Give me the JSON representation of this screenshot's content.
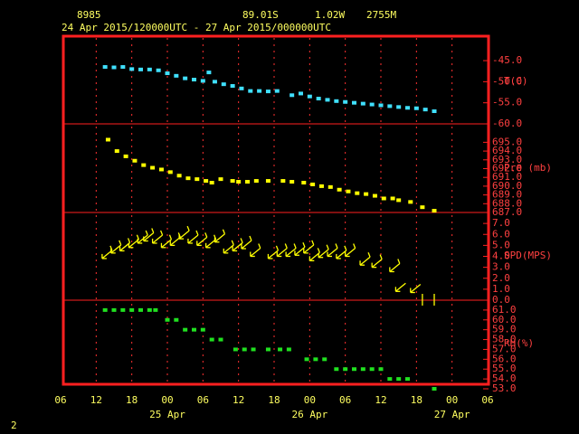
{
  "header": {
    "station": "8985",
    "lat": "89.01S",
    "lon": "1.02W",
    "elev": "2755M",
    "period": "24 Apr 2015/120000UTC - 27 Apr 2015/000000UTC",
    "page": "2"
  },
  "chart_data": [
    {
      "type": "scatter",
      "label": "T(C)",
      "color": "#40e0ff",
      "x": [
        7.5,
        9,
        10.5,
        12,
        13.5,
        15,
        16.5,
        18,
        19.5,
        21,
        22.5,
        24,
        25,
        26,
        27.5,
        29,
        30.5,
        32,
        33.5,
        35,
        36.5,
        39,
        40.5,
        42,
        43.5,
        45,
        46.5,
        48,
        49.5,
        51,
        52.5,
        54,
        55.5,
        57,
        58.5,
        60,
        61.5,
        63
      ],
      "values": [
        -46.5,
        -46.6,
        -46.5,
        -47.0,
        -47.1,
        -47.1,
        -47.3,
        -48.0,
        -48.6,
        -49.2,
        -49.5,
        -49.8,
        -47.8,
        -50.0,
        -50.6,
        -51.0,
        -51.6,
        -52.2,
        -52.2,
        -52.3,
        -52.2,
        -53.2,
        -52.8,
        -53.5,
        -54.0,
        -54.3,
        -54.6,
        -54.8,
        -55.0,
        -55.2,
        -55.4,
        -55.6,
        -55.8,
        -56.0,
        -56.2,
        -56.3,
        -56.6,
        -57.0
      ],
      "ylim": [
        -60,
        -39.2
      ],
      "yticks": [
        {
          "value": -45,
          "label": "-45.0"
        },
        {
          "value": -50,
          "label": "-50.0"
        },
        {
          "value": -55,
          "label": "-55.0"
        },
        {
          "value": -60,
          "label": "-60.0"
        }
      ]
    },
    {
      "type": "scatter",
      "label": "Pre (mb)",
      "color": "#ffff00",
      "x": [
        8,
        9.5,
        11,
        12.5,
        14,
        15.5,
        17,
        18.5,
        20,
        21.5,
        23,
        24.5,
        25.5,
        27,
        29,
        30,
        31.5,
        33,
        35,
        37.5,
        39,
        41,
        42.5,
        44,
        45.5,
        47,
        48.5,
        50,
        51.5,
        53,
        54.5,
        56,
        57,
        59,
        61,
        63
      ],
      "values": [
        695.3,
        694.0,
        693.4,
        692.9,
        692.4,
        692.1,
        691.9,
        691.6,
        691.2,
        690.9,
        690.8,
        690.6,
        690.4,
        690.8,
        690.6,
        690.5,
        690.5,
        690.6,
        690.6,
        690.6,
        690.5,
        690.4,
        690.2,
        690.0,
        689.9,
        689.6,
        689.4,
        689.2,
        689.1,
        688.9,
        688.6,
        688.6,
        688.4,
        688.2,
        687.6,
        687.2
      ],
      "ylim": [
        687,
        697.1
      ],
      "yticks": [
        {
          "value": 695,
          "label": "695.0"
        },
        {
          "value": 694,
          "label": "694.0"
        },
        {
          "value": 693,
          "label": "693.0"
        },
        {
          "value": 692,
          "label": "692.0"
        },
        {
          "value": 691,
          "label": "691.0"
        },
        {
          "value": 690,
          "label": "690.0"
        },
        {
          "value": 689,
          "label": "689.0"
        },
        {
          "value": 688,
          "label": "688.0"
        },
        {
          "value": 687,
          "label": "687.0"
        }
      ]
    },
    {
      "type": "wind",
      "label": "SPD(MPS)",
      "color": "#ffff00",
      "x": [
        7,
        8.5,
        10,
        11.5,
        13,
        14,
        15.5,
        17,
        18.5,
        20,
        21.5,
        23,
        24.5,
        26,
        27.5,
        29,
        30.5,
        32,
        35,
        36.5,
        38,
        39.5,
        41,
        42,
        43.5,
        45,
        46.5,
        48,
        50.5,
        52.5,
        55.5,
        56.5,
        59,
        61,
        63
      ],
      "values": [
        3.8,
        4.3,
        4.5,
        4.8,
        5.2,
        5.4,
        5.2,
        4.8,
        5.0,
        5.6,
        5.2,
        5.0,
        4.8,
        5.3,
        4.3,
        4.5,
        4.7,
        4.0,
        3.8,
        4.0,
        4.0,
        4.1,
        4.3,
        3.6,
        3.9,
        4.0,
        3.8,
        4.0,
        3.2,
        3.0,
        2.6,
        0.8,
        0.7,
        0.0,
        0.0
      ],
      "ylim": [
        0,
        8
      ],
      "yticks": [
        {
          "value": 7,
          "label": "7.0"
        },
        {
          "value": 6,
          "label": "6.0"
        },
        {
          "value": 5,
          "label": "5.0"
        },
        {
          "value": 4,
          "label": "4.0"
        },
        {
          "value": 3,
          "label": "3.0"
        },
        {
          "value": 2,
          "label": "2.0"
        },
        {
          "value": 1,
          "label": "1.0"
        },
        {
          "value": 0,
          "label": "0.0"
        }
      ]
    },
    {
      "type": "scatter",
      "label": "RH(%)",
      "color": "#20e020",
      "x": [
        7.5,
        9,
        10.5,
        12,
        13.5,
        15,
        16,
        18,
        19.5,
        21,
        22.5,
        24,
        25.5,
        27,
        29.5,
        31,
        32.5,
        35,
        37,
        38.5,
        41.5,
        43,
        44.5,
        46.5,
        48,
        49.5,
        51,
        52.5,
        54,
        55.5,
        57,
        58.5,
        63
      ],
      "values": [
        61,
        61,
        61,
        61,
        61,
        61,
        61,
        60,
        60,
        59,
        59,
        59,
        58,
        58,
        57,
        57,
        57,
        57,
        57,
        57,
        56,
        56,
        56,
        55,
        55,
        55,
        55,
        55,
        55,
        54,
        54,
        54,
        53
      ],
      "ylim": [
        53,
        62
      ],
      "yticks": [
        {
          "value": 61,
          "label": "61.0"
        },
        {
          "value": 60,
          "label": "60.0"
        },
        {
          "value": 59,
          "label": "59.0"
        },
        {
          "value": 58,
          "label": "58.0"
        },
        {
          "value": 57,
          "label": "57.0"
        },
        {
          "value": 56,
          "label": "56.0"
        },
        {
          "value": 55,
          "label": "55.0"
        },
        {
          "value": 54,
          "label": "54.0"
        },
        {
          "value": 53,
          "label": "53.0"
        }
      ],
      "xlim": [
        0,
        72
      ],
      "xticks": [
        {
          "value": 0,
          "label": "06"
        },
        {
          "value": 6,
          "label": "12"
        },
        {
          "value": 12,
          "label": "18"
        },
        {
          "value": 18,
          "label": "00"
        },
        {
          "value": 24,
          "label": "06"
        },
        {
          "value": 30,
          "label": "12"
        },
        {
          "value": 36,
          "label": "18"
        },
        {
          "value": 42,
          "label": "00"
        },
        {
          "value": 48,
          "label": "06"
        },
        {
          "value": 54,
          "label": "12"
        },
        {
          "value": 60,
          "label": "18"
        },
        {
          "value": 66,
          "label": "00"
        },
        {
          "value": 72,
          "label": "06"
        }
      ],
      "date_labels": [
        {
          "value": 18,
          "label": "25 Apr"
        },
        {
          "value": 42,
          "label": "26 Apr"
        },
        {
          "value": 66,
          "label": "27 Apr"
        }
      ]
    }
  ]
}
